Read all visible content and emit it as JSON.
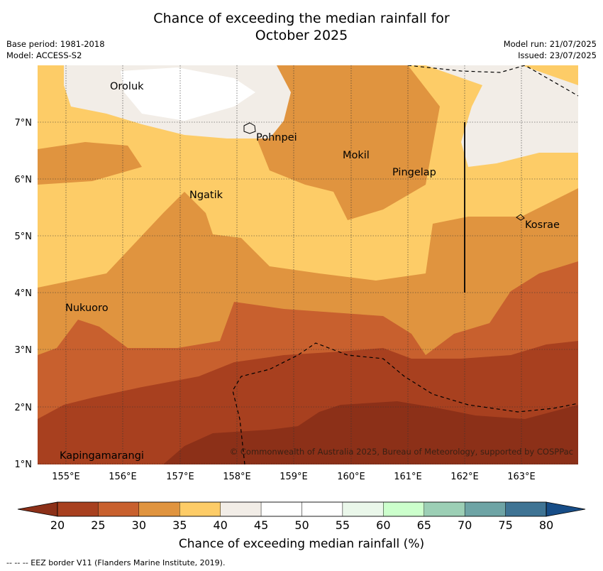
{
  "title_line1": "Chance of exceeding the median rainfall for",
  "title_line2": "October 2025",
  "base_period": "Base period: 1981-2018",
  "model": "Model: ACCESS-S2",
  "model_run": "Model run: 21/07/2025",
  "issued": "Issued: 23/07/2025",
  "lon_labels": [
    "155°E",
    "156°E",
    "157°E",
    "158°E",
    "159°E",
    "160°E",
    "161°E",
    "162°E",
    "163°E"
  ],
  "lat_labels": [
    "7°N",
    "6°N",
    "5°N",
    "4°N",
    "3°N",
    "2°N",
    "1°N"
  ],
  "places": [
    "Oroluk",
    "Pohnpei",
    "Mokil",
    "Pingelap",
    "Ngatik",
    "Kosrae",
    "Nukuoro",
    "Kapingamarangi"
  ],
  "copyright": "© Commonwealth of Australia 2025, Bureau of Meteorology, supported by COSPPac",
  "colorbar": {
    "ticks": [
      "20",
      "25",
      "30",
      "35",
      "40",
      "45",
      "50",
      "55",
      "60",
      "65",
      "70",
      "75",
      "80"
    ],
    "colors": [
      "#a8401f",
      "#c8602e",
      "#e0943f",
      "#fdcc67",
      "#f2ede7",
      "#ffffff",
      "#ffffff",
      "#eaf7ea",
      "#ccffcc",
      "#9ccfb5",
      "#6ea4a5",
      "#3f7494"
    ],
    "under_color": "#8c3018",
    "over_color": "#174d87",
    "label": "Chance of exceeding median rainfall (%)"
  },
  "eez_note": "--  --  -- EEZ border V11 (Flanders Marine Institute, 2019)."
}
